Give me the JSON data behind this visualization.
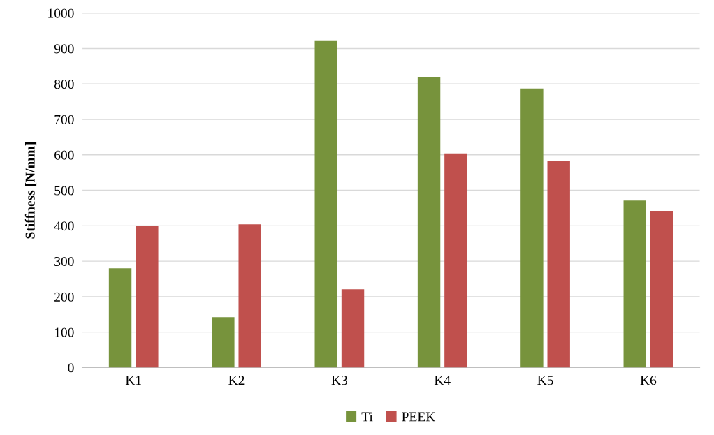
{
  "chart_data": {
    "type": "bar",
    "ylabel": "Stiffness [N/mm]",
    "categories": [
      "K1",
      "K2",
      "K3",
      "K4",
      "K5",
      "K6"
    ],
    "series": [
      {
        "name": "Ti",
        "color": "#77933c",
        "values": [
          280,
          142,
          921,
          820,
          787,
          471
        ]
      },
      {
        "name": "PEEK",
        "color": "#c0504d",
        "values": [
          400,
          404,
          221,
          604,
          582,
          442
        ]
      }
    ],
    "ylim": [
      0,
      1000
    ],
    "yticks": [
      0,
      100,
      200,
      300,
      400,
      500,
      600,
      700,
      800,
      900,
      1000
    ],
    "grid": "y",
    "legend": "bottom"
  }
}
